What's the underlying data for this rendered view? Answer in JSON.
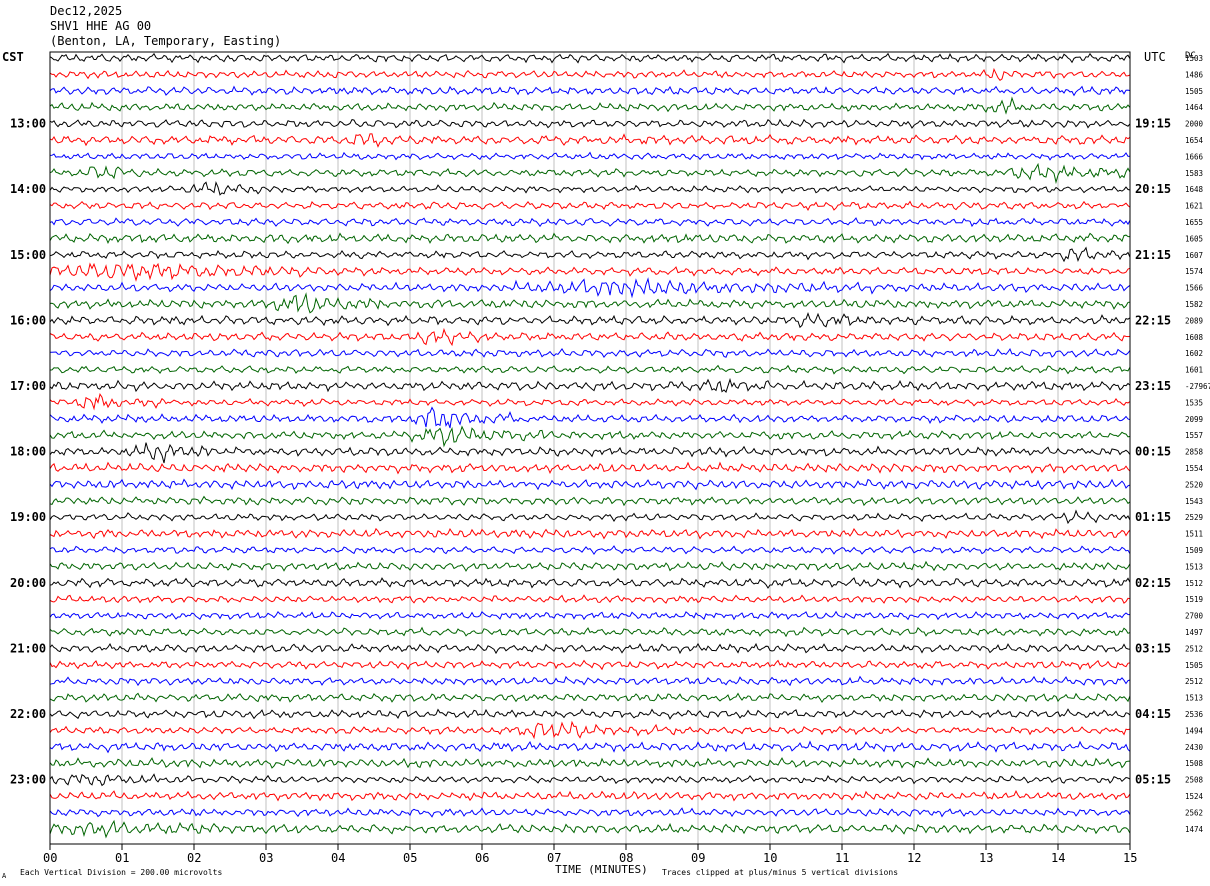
{
  "header": {
    "date": "Dec12,2025",
    "station": "SHV1 HHE AG 00",
    "location": "(Benton, LA, Temporary, Easting)"
  },
  "left_axis_title": "CST",
  "right_axis_title": "UTC",
  "right_column_title": "DC",
  "footer": {
    "scale_note": "Each Vertical Division =  200.00 microvolts",
    "xlabel": "TIME (MINUTES)",
    "clip_note": "Traces clipped at plus/minus 5 vertical divisions",
    "corner_mark": "A"
  },
  "colors": {
    "trace_cycle": [
      "#000000",
      "#ff0000",
      "#0000ff",
      "#006400"
    ],
    "grid": "#999999",
    "background": "#ffffff"
  },
  "chart_data": {
    "type": "line",
    "title": "SHV1 HHE AG 00",
    "xlabel": "TIME (MINUTES)",
    "xlim": [
      0,
      15
    ],
    "x_ticks": [
      "00",
      "01",
      "02",
      "03",
      "04",
      "05",
      "06",
      "07",
      "08",
      "09",
      "10",
      "11",
      "12",
      "13",
      "14",
      "15"
    ],
    "grid": true,
    "trace_minutes": 15,
    "trace_count": 48,
    "left_hour_labels": [
      "13:00",
      "14:00",
      "15:00",
      "16:00",
      "17:00",
      "18:00",
      "19:00",
      "20:00",
      "21:00",
      "22:00",
      "23:00"
    ],
    "right_hour_labels": [
      "19:15",
      "20:15",
      "21:15",
      "22:15",
      "23:15",
      "00:15",
      "01:15",
      "02:15",
      "03:15",
      "04:15",
      "05:15"
    ],
    "dc_offsets": [
      "1503",
      "1486",
      "1505",
      "1464",
      "2000",
      "1654",
      "1666",
      "1583",
      "1648",
      "1621",
      "1655",
      "1605",
      "1607",
      "1574",
      "1566",
      "1582",
      "2089",
      "1608",
      "1602",
      "1601",
      "-27967",
      "1535",
      "2099",
      "1557",
      "2858",
      "1554",
      "2520",
      "1543",
      "2529",
      "1511",
      "1509",
      "1513",
      "1512",
      "1519",
      "2700",
      "1497",
      "2512",
      "1505",
      "2512",
      "1513",
      "2536",
      "1494",
      "2430",
      "1508",
      "2508",
      "1524",
      "2562",
      "1474"
    ],
    "events": [
      {
        "trace": 1,
        "start_min": 13.0,
        "end_min": 13.5,
        "amp": 1.4
      },
      {
        "trace": 3,
        "start_min": 13.0,
        "end_min": 13.9,
        "amp": 1.6
      },
      {
        "trace": 5,
        "start_min": 4.2,
        "end_min": 4.8,
        "amp": 1.6
      },
      {
        "trace": 7,
        "start_min": 0.4,
        "end_min": 1.6,
        "amp": 1.6
      },
      {
        "trace": 7,
        "start_min": 13.3,
        "end_min": 15.0,
        "amp": 2.0
      },
      {
        "trace": 8,
        "start_min": 1.9,
        "end_min": 3.1,
        "amp": 1.8
      },
      {
        "trace": 12,
        "start_min": 14.0,
        "end_min": 15.0,
        "amp": 1.7
      },
      {
        "trace": 13,
        "start_min": 0.0,
        "end_min": 3.6,
        "amp": 2.2
      },
      {
        "trace": 14,
        "start_min": 6.4,
        "end_min": 11.5,
        "amp": 1.6
      },
      {
        "trace": 15,
        "start_min": 3.0,
        "end_min": 4.6,
        "amp": 2.0
      },
      {
        "trace": 16,
        "start_min": 10.3,
        "end_min": 11.3,
        "amp": 1.5
      },
      {
        "trace": 17,
        "start_min": 5.0,
        "end_min": 6.2,
        "amp": 1.6
      },
      {
        "trace": 20,
        "start_min": 9.0,
        "end_min": 10.0,
        "amp": 1.6
      },
      {
        "trace": 21,
        "start_min": 0.3,
        "end_min": 1.6,
        "amp": 2.2
      },
      {
        "trace": 22,
        "start_min": 5.0,
        "end_min": 6.4,
        "amp": 2.6
      },
      {
        "trace": 23,
        "start_min": 4.9,
        "end_min": 7.0,
        "amp": 2.0
      },
      {
        "trace": 24,
        "start_min": 1.1,
        "end_min": 2.3,
        "amp": 2.2
      },
      {
        "trace": 28,
        "start_min": 14.0,
        "end_min": 15.0,
        "amp": 1.3
      },
      {
        "trace": 41,
        "start_min": 6.3,
        "end_min": 8.8,
        "amp": 1.8
      },
      {
        "trace": 44,
        "start_min": 0.0,
        "end_min": 2.0,
        "amp": 1.1
      },
      {
        "trace": 47,
        "start_min": 0.0,
        "end_min": 2.4,
        "amp": 1.2
      }
    ]
  }
}
